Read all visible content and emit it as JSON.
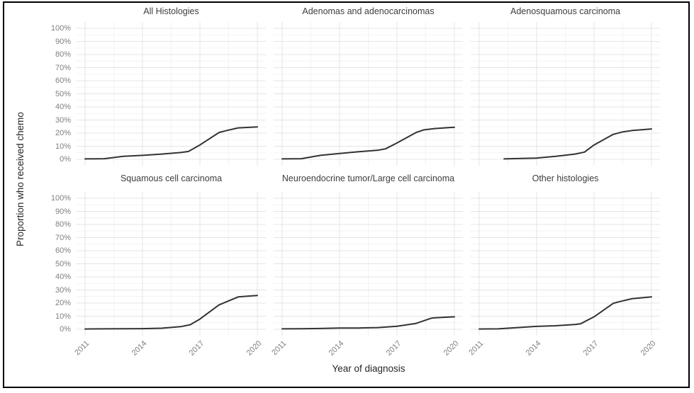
{
  "figure": {
    "x_axis_title": "Year of diagnosis",
    "y_axis_title": "Proportion who received chemo"
  },
  "colors": {
    "line": "#333333",
    "grid_major": "#e4e4e4",
    "grid_minor": "#f3f3f3",
    "tick_text": "#7f7f7f",
    "panel_title_text": "#3d3d3d",
    "axis_title_text": "#262626",
    "outer_border": "#000000",
    "background": "#ffffff"
  },
  "chart_data": {
    "type": "line",
    "xlabel": "Year of diagnosis",
    "ylabel": "Proportion who received chemo",
    "xlim": [
      2011,
      2020
    ],
    "ylim": [
      0,
      100
    ],
    "grid": true,
    "legend": "none",
    "x_tick_values": [
      2011,
      2014,
      2017,
      2020
    ],
    "x_tick_labels": [
      "2011",
      "2014",
      "2017",
      "2020"
    ],
    "x_minor_values": [
      2012.5,
      2015.5,
      2018.5
    ],
    "y_tick_values": [
      0,
      10,
      20,
      30,
      40,
      50,
      60,
      70,
      80,
      90,
      100
    ],
    "y_tick_labels": [
      "0%",
      "10%",
      "20%",
      "30%",
      "40%",
      "50%",
      "60%",
      "70%",
      "80%",
      "90%",
      "100%"
    ],
    "y_minor_values": [
      5,
      15,
      25,
      35,
      45,
      55,
      65,
      75,
      85,
      95
    ],
    "facets": [
      {
        "title": "All Histologies",
        "x": [
          2011,
          2012,
          2013,
          2014,
          2015,
          2016,
          2016.4,
          2017,
          2018,
          2018.4,
          2019,
          2020
        ],
        "y": [
          0.3,
          0.5,
          2.3,
          3.0,
          4.0,
          5.2,
          6.0,
          11.0,
          20.5,
          22.0,
          24.0,
          24.7
        ]
      },
      {
        "title": "Adenomas and adenocarcinomas",
        "x": [
          2011,
          2012,
          2013,
          2014,
          2015,
          2016,
          2016.4,
          2017,
          2018,
          2018.4,
          2019,
          2020
        ],
        "y": [
          0.3,
          0.5,
          3.0,
          4.5,
          5.8,
          7.0,
          8.0,
          12.5,
          20.5,
          22.5,
          23.5,
          24.5
        ]
      },
      {
        "title": "Adenosquamous carcinoma",
        "x": [
          2012.3,
          2013,
          2014,
          2015,
          2016,
          2016.5,
          2017,
          2018,
          2018.5,
          2019,
          2020
        ],
        "y": [
          0.3,
          0.6,
          1.0,
          2.3,
          4.0,
          5.5,
          11.0,
          19.0,
          21.0,
          22.0,
          23.2
        ]
      },
      {
        "title": "Squamous cell carcinoma",
        "x": [
          2011,
          2012,
          2013,
          2014,
          2015,
          2016,
          2016.5,
          2017,
          2018,
          2019,
          2020
        ],
        "y": [
          0.2,
          0.3,
          0.4,
          0.5,
          0.8,
          2.0,
          3.5,
          7.8,
          18.6,
          24.7,
          25.8
        ]
      },
      {
        "title": "Neuroendocrine tumor/Large cell carcinoma",
        "x": [
          2011,
          2012,
          2013,
          2014,
          2015,
          2016,
          2017,
          2018,
          2018.8,
          2019,
          2020
        ],
        "y": [
          0.3,
          0.4,
          0.6,
          1.0,
          1.0,
          1.3,
          2.3,
          4.5,
          8.5,
          8.8,
          9.5
        ]
      },
      {
        "title": "Other histologies",
        "x": [
          2011,
          2012,
          2013,
          2014,
          2015,
          2016,
          2016.3,
          2017,
          2018,
          2018.3,
          2019,
          2020
        ],
        "y": [
          0.2,
          0.3,
          1.3,
          2.2,
          2.7,
          3.6,
          4.2,
          9.5,
          19.8,
          21.0,
          23.4,
          24.7
        ]
      }
    ]
  }
}
